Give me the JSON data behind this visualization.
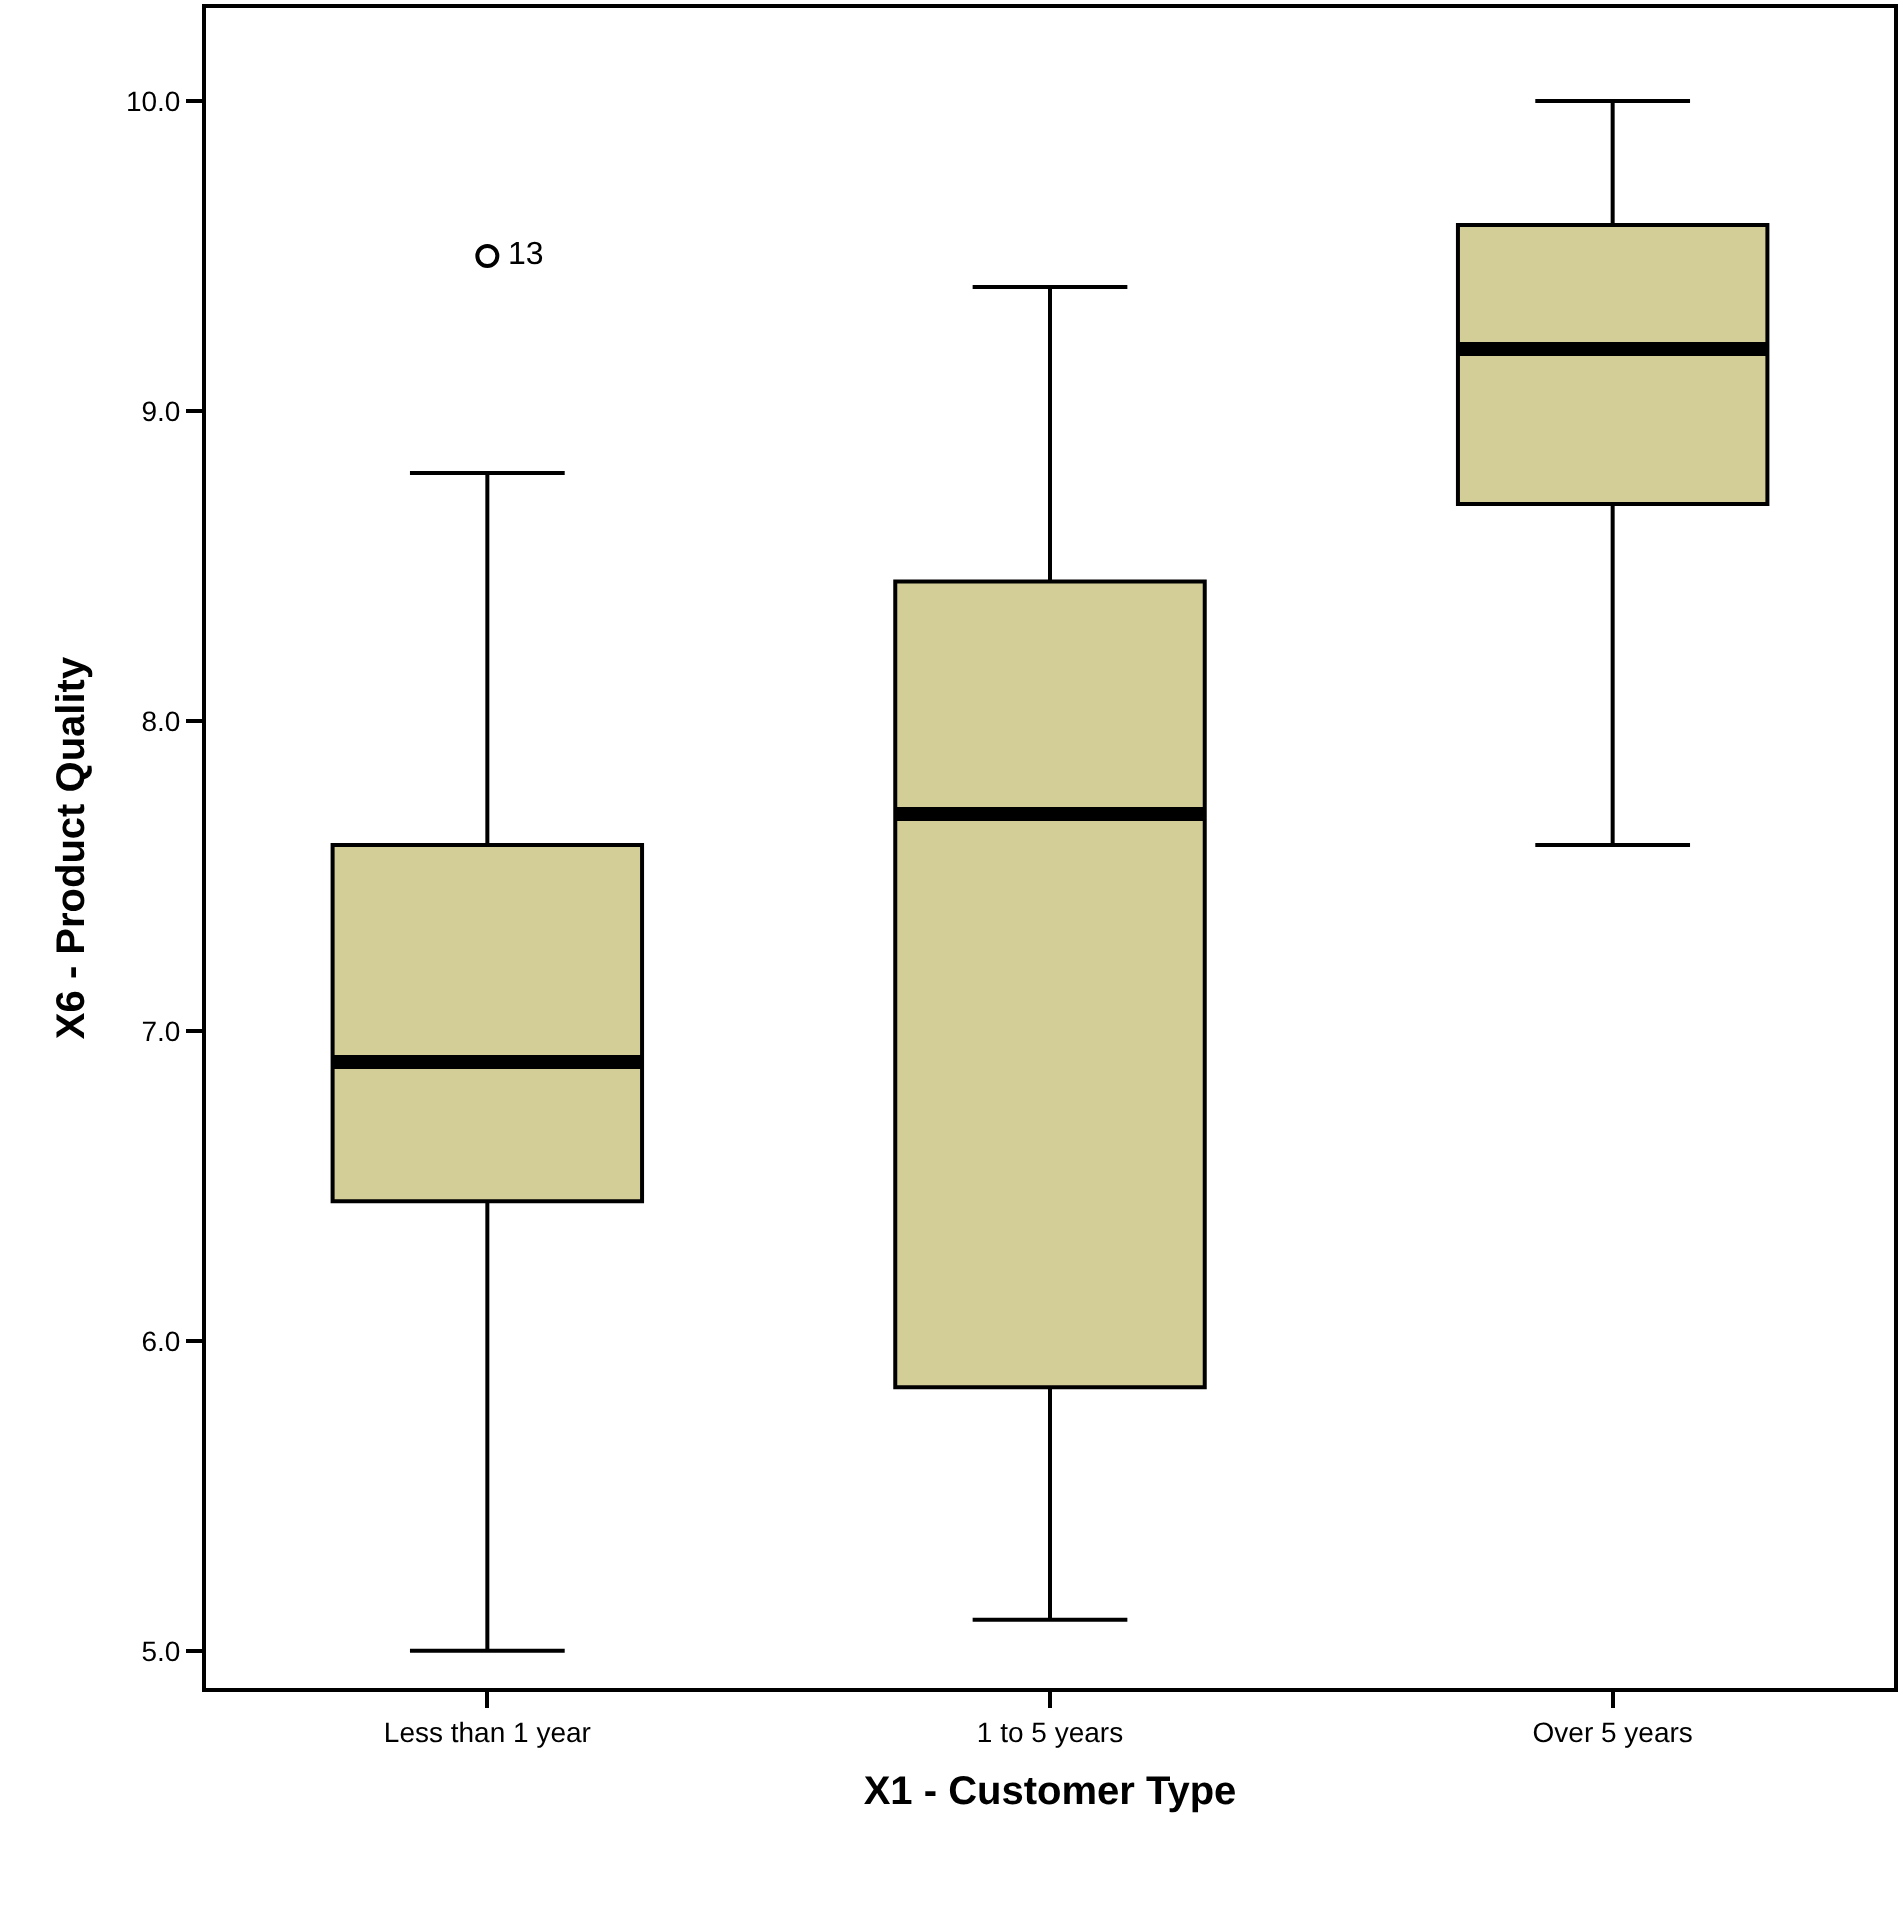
{
  "chart_data": {
    "type": "box",
    "xlabel": "X1 - Customer Type",
    "ylabel": "X6 - Product Quality",
    "categories": [
      "Less than 1 year",
      "1 to 5 years",
      "Over 5 years"
    ],
    "boxes": [
      {
        "low": 5.0,
        "q1": 6.45,
        "median": 6.9,
        "q3": 7.6,
        "high": 8.8,
        "outliers": [
          9.5
        ]
      },
      {
        "low": 5.1,
        "q1": 5.85,
        "median": 7.7,
        "q3": 8.45,
        "high": 9.4
      },
      {
        "low": 7.6,
        "q1": 8.7,
        "median": 9.2,
        "q3": 9.6,
        "high": 10.0
      }
    ],
    "color": "#d3ce98",
    "ylim": [
      4.88,
      10.3
    ],
    "yticks": [
      {
        "value": 5,
        "label": "5.0"
      },
      {
        "value": 6,
        "label": "6.0"
      },
      {
        "value": 7,
        "label": "7.0"
      },
      {
        "value": 8,
        "label": "8.0"
      },
      {
        "value": 9,
        "label": "9.0"
      },
      {
        "value": 10,
        "label": "10.0"
      }
    ],
    "annotations": [
      "13"
    ],
    "marker": "circle"
  }
}
